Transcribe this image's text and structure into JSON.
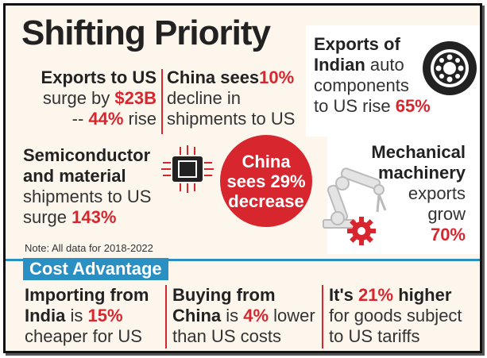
{
  "title": "Shifting Priority",
  "exports_us": {
    "line1": "Exports to US",
    "line2_pre": "surge by ",
    "line2_val": "$23B",
    "line3_pre": "-- ",
    "line3_val": "44%",
    "line3_post": " rise"
  },
  "china_decline": {
    "line1_pre": "China sees",
    "line1_val": "10%",
    "line2": "decline in",
    "line3": "shipments to US"
  },
  "auto_components": {
    "line1": "Exports of",
    "line2_bold": "Indian",
    "line2_rest": " auto",
    "line3": "components",
    "line4_pre": "to US rise ",
    "line4_val": "65%"
  },
  "semiconductor": {
    "line1": "Semiconductor",
    "line2": "and material",
    "line3": "shipments to US",
    "line4_pre": "surge ",
    "line4_val": "143%"
  },
  "china_circle": {
    "line1": "China",
    "line2": "sees 29%",
    "line3": "decrease"
  },
  "machinery": {
    "line1": "Mechanical",
    "line2": "machinery",
    "line3": "exports",
    "line4": "grow",
    "line5": "70%"
  },
  "note": "Note: All data for 2018-2022",
  "cost_label": "Cost Advantage",
  "cost_india": {
    "line1": "Importing from",
    "line2_bold": "India",
    "line2_mid": " is ",
    "line2_val": "15%",
    "line3": "cheaper for US"
  },
  "cost_china": {
    "line1": "Buying from",
    "line2_bold": "China",
    "line2_mid": " is ",
    "line2_val": "4%",
    "line2_post": " lower",
    "line3": "than US costs"
  },
  "cost_tariff": {
    "line1_pre": "It's ",
    "line1_val": "21%",
    "line1_post": " higher",
    "line2": "for goods subject",
    "line3": "to US tariffs"
  },
  "colors": {
    "accent_red": "#d7262e",
    "accent_blue": "#2a8fc2",
    "background": "#fdf6ec"
  },
  "icons": [
    "chip-icon",
    "wheel-icon",
    "robot-arm-icon",
    "gear-icon"
  ]
}
